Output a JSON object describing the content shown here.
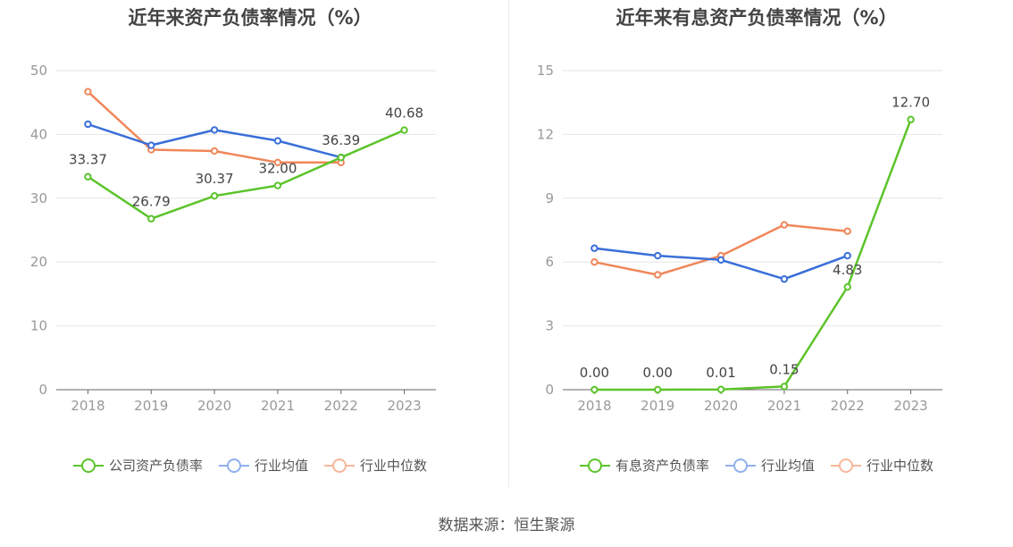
{
  "charts": [
    {
      "title": "近年来资产负债率情况（%）",
      "legend": [
        {
          "label": "公司资产负债率",
          "color": "#5cc42b"
        },
        {
          "label": "行业均值",
          "color": "#3a6fd8"
        },
        {
          "label": "行业中位数",
          "color": "#f0875a"
        }
      ]
    },
    {
      "title": "近年来有息资产负债率情况（%）",
      "legend": [
        {
          "label": "有息资产负债率",
          "color": "#5cc42b"
        },
        {
          "label": "行业均值",
          "color": "#3a6fd8"
        },
        {
          "label": "行业中位数",
          "color": "#f0875a"
        }
      ]
    }
  ],
  "source": "数据来源：恒生聚源",
  "chart_data": [
    {
      "type": "line",
      "title": "近年来资产负债率情况（%）",
      "categories": [
        "2018",
        "2019",
        "2020",
        "2021",
        "2022",
        "2023"
      ],
      "ylim": [
        0,
        50
      ],
      "yticks": [
        0,
        10,
        20,
        30,
        40,
        50
      ],
      "grid": true,
      "legend_position": "bottom",
      "series": [
        {
          "name": "公司资产负债率",
          "color": "#5cc42b",
          "values": [
            33.37,
            26.79,
            30.37,
            32.0,
            36.39,
            40.68
          ],
          "labels": [
            "33.37",
            "26.79",
            "30.37",
            "32.00",
            "36.39",
            "40.68"
          ]
        },
        {
          "name": "行业均值",
          "color": "#3a6fd8",
          "values": [
            41.6,
            38.3,
            40.7,
            39.0,
            36.4,
            null
          ]
        },
        {
          "name": "行业中位数",
          "color": "#f0875a",
          "values": [
            46.7,
            37.6,
            37.4,
            35.6,
            35.6,
            null
          ]
        }
      ]
    },
    {
      "type": "line",
      "title": "近年来有息资产负债率情况（%）",
      "categories": [
        "2018",
        "2019",
        "2020",
        "2021",
        "2022",
        "2023"
      ],
      "ylim": [
        0,
        15
      ],
      "yticks": [
        0,
        3,
        6,
        9,
        12,
        15
      ],
      "grid": true,
      "legend_position": "bottom",
      "series": [
        {
          "name": "有息资产负债率",
          "color": "#5cc42b",
          "values": [
            0.0,
            0.0,
            0.01,
            0.15,
            4.83,
            12.7
          ],
          "labels": [
            "0.00",
            "0.00",
            "0.01",
            "0.15",
            "4.83",
            "12.70"
          ]
        },
        {
          "name": "行业均值",
          "color": "#3a6fd8",
          "values": [
            6.65,
            6.3,
            6.1,
            5.2,
            6.3,
            null
          ]
        },
        {
          "name": "行业中位数",
          "color": "#f0875a",
          "values": [
            6.0,
            5.4,
            6.3,
            7.75,
            7.45,
            null
          ]
        }
      ]
    }
  ]
}
